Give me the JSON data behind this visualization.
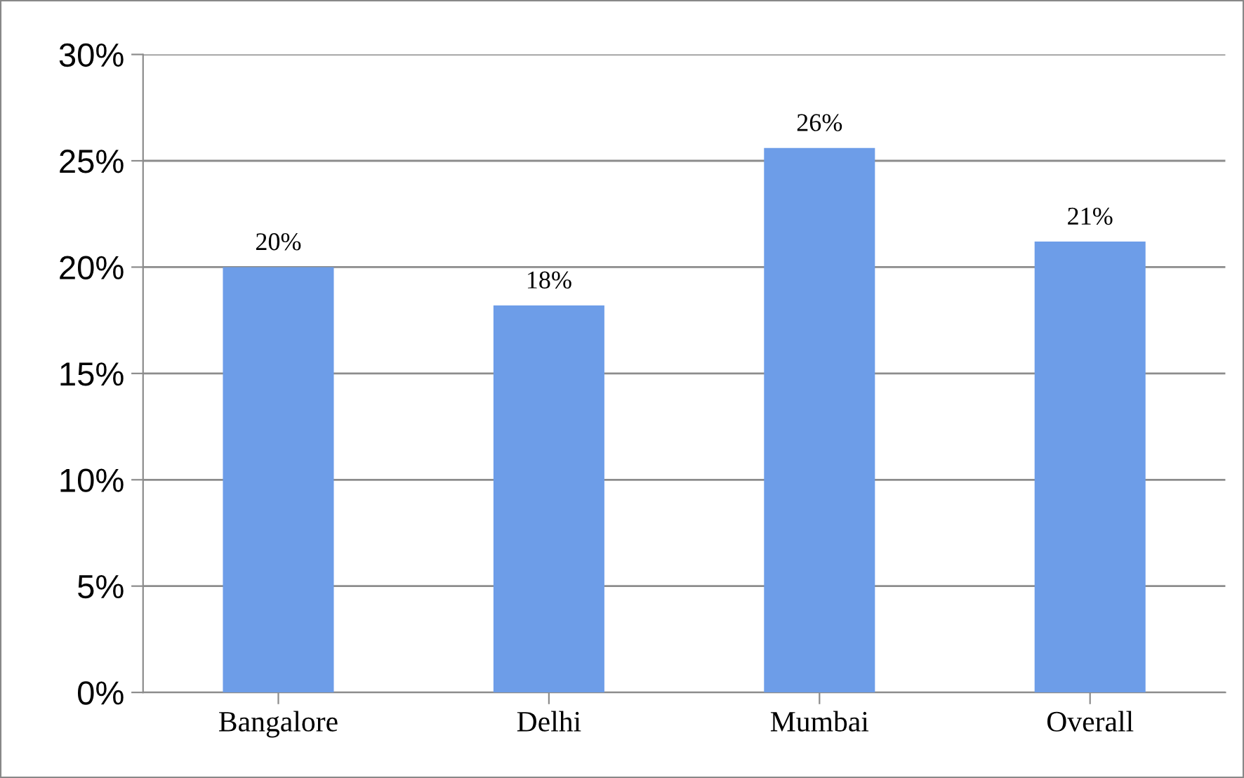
{
  "chart_data": {
    "type": "bar",
    "categories": [
      "Bangalore",
      "Delhi",
      "Mumbai",
      "Overall"
    ],
    "values": [
      20.0,
      18.2,
      25.6,
      21.2
    ],
    "value_labels": [
      "20%",
      "18%",
      "26%",
      "21%"
    ],
    "color": "#6d9de8",
    "ylim": [
      0,
      30
    ],
    "yticks": [
      {
        "value": 0,
        "label": "0%"
      },
      {
        "value": 5,
        "label": "5%"
      },
      {
        "value": 10,
        "label": "10%"
      },
      {
        "value": 15,
        "label": "15%"
      },
      {
        "value": 20,
        "label": "20%"
      },
      {
        "value": 25,
        "label": "25%"
      },
      {
        "value": 30,
        "label": "30%"
      }
    ],
    "grid": "y",
    "legend": false
  }
}
